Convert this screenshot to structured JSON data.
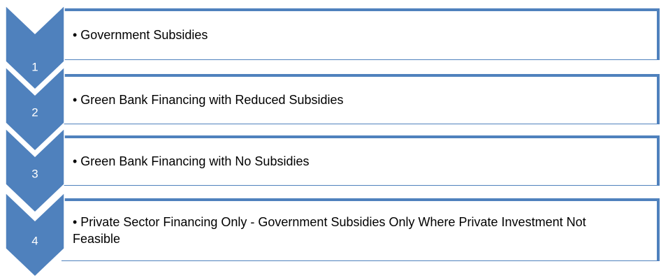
{
  "items": [
    {
      "number": "1",
      "text": "• Government Subsidies"
    },
    {
      "number": "2",
      "text": "• Green Bank Financing with Reduced Subsidies"
    },
    {
      "number": "3",
      "text": "• Green Bank Financing with No Subsidies"
    },
    {
      "number": "4",
      "text": "•  Private Sector Financing Only - Government Subsidies Only Where Private Investment Not Feasible"
    }
  ]
}
